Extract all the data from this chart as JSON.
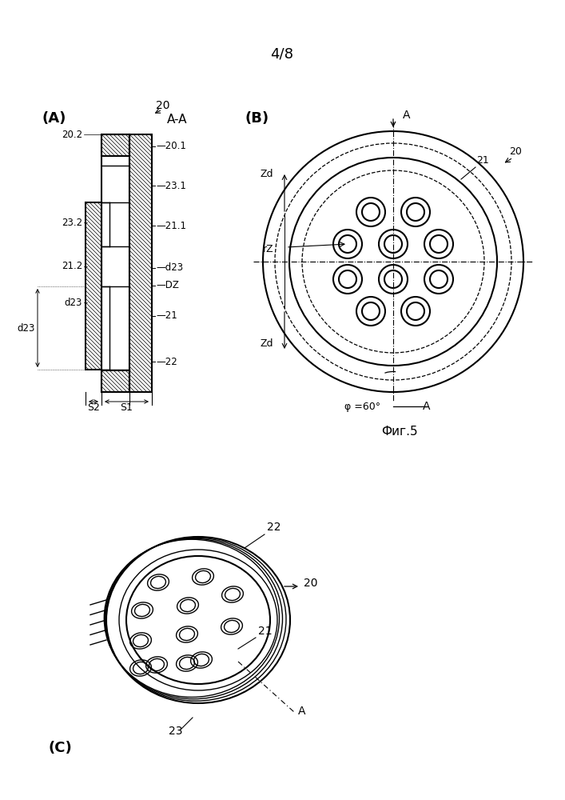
{
  "page_label": "4/8",
  "fig_label": "Фиг.5",
  "bg": "#ffffff",
  "lc": "#000000",
  "panel_a": "(A)",
  "panel_b": "(B)",
  "panel_c": "(C)"
}
